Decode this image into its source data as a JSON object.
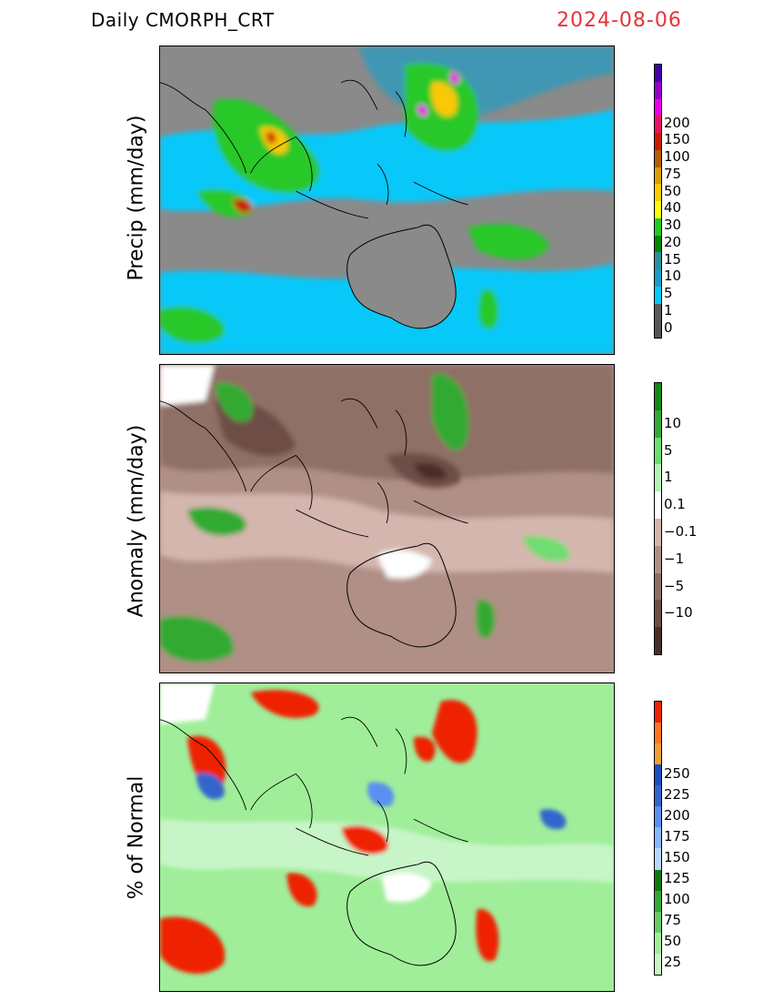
{
  "header": {
    "product": "Daily  CMORPH_CRT",
    "date": "2024-08-06"
  },
  "panels": [
    {
      "ylabel": "Precip  (mm/day)",
      "colorbar": {
        "colors": [
          "#555555",
          "#5a5a5a",
          "#00ccff",
          "#1a9ec8",
          "#2c8fa0",
          "#008800",
          "#22cc22",
          "#ffff00",
          "#ffcc00",
          "#d9a000",
          "#b06000",
          "#cc1a00",
          "#ee1166",
          "#ee00ee",
          "#9900cc",
          "#4400aa"
        ],
        "labels": [
          "0",
          "1",
          "5",
          "10",
          "15",
          "20",
          "30",
          "40",
          "50",
          "75",
          "100",
          "150",
          "200"
        ]
      }
    },
    {
      "ylabel": "Anomaly  (mm/day)",
      "colorbar": {
        "colors": [
          "#4a2e28",
          "#6e4e46",
          "#8f6f66",
          "#b08f86",
          "#d4b6ae",
          "#ffffff",
          "#b4f4b4",
          "#70dd70",
          "#33aa33",
          "#148814"
        ],
        "labels": [
          "10",
          "5",
          "1",
          "0.1",
          "−0.1",
          "−1",
          "−5",
          "−10"
        ]
      }
    },
    {
      "ylabel": "%  of  Normal",
      "colorbar": {
        "colors": [
          "#c8f5c8",
          "#a0ee9a",
          "#66cc66",
          "#33aa33",
          "#117711",
          "#b8d8ff",
          "#8ab8ff",
          "#5a90f0",
          "#3366cc",
          "#1a50c0",
          "#f2a033",
          "#ff7722",
          "#ee2200"
        ],
        "labels": [
          "25",
          "50",
          "75",
          "100",
          "125",
          "150",
          "175",
          "200",
          "225",
          "250"
        ]
      }
    }
  ]
}
